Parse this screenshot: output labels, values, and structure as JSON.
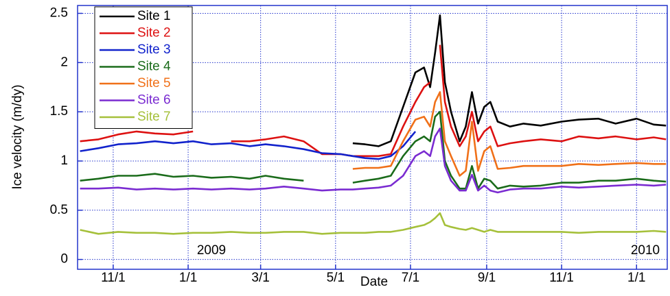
{
  "chart_data": {
    "type": "line",
    "xlabel": "Date",
    "ylabel": "Ice velocity (m/dy)",
    "annotations": [
      "2009",
      "2010"
    ],
    "x": [
      "2008-10-05",
      "2008-10-20",
      "2008-11-05",
      "2008-11-20",
      "2008-12-05",
      "2008-12-20",
      "2009-01-05",
      "2009-01-20",
      "2009-02-05",
      "2009-02-20",
      "2009-03-05",
      "2009-03-20",
      "2009-04-05",
      "2009-04-20",
      "2009-05-05",
      "2009-05-15",
      "2009-05-25",
      "2009-06-05",
      "2009-06-15",
      "2009-06-25",
      "2009-07-05",
      "2009-07-12",
      "2009-07-17",
      "2009-07-21",
      "2009-07-25",
      "2009-07-29",
      "2009-08-03",
      "2009-08-10",
      "2009-08-15",
      "2009-08-20",
      "2009-08-25",
      "2009-08-30",
      "2009-09-04",
      "2009-09-10",
      "2009-09-20",
      "2009-10-01",
      "2009-10-15",
      "2009-11-01",
      "2009-11-15",
      "2009-12-01",
      "2009-12-15",
      "2010-01-01",
      "2010-01-15",
      "2010-01-25"
    ],
    "series": [
      {
        "name": "Site 1",
        "color": "#000000",
        "values": [
          null,
          null,
          null,
          null,
          null,
          null,
          null,
          null,
          null,
          null,
          null,
          null,
          null,
          null,
          null,
          1.18,
          1.17,
          1.15,
          1.2,
          1.55,
          1.9,
          1.95,
          1.75,
          2.1,
          2.48,
          1.8,
          1.5,
          1.2,
          1.35,
          1.7,
          1.38,
          1.55,
          1.6,
          1.4,
          1.35,
          1.38,
          1.36,
          1.4,
          1.42,
          1.43,
          1.38,
          1.43,
          1.37,
          1.36
        ]
      },
      {
        "name": "Site 2",
        "color": "#dd1111",
        "values": [
          1.2,
          1.22,
          1.27,
          1.3,
          1.28,
          1.27,
          1.3,
          null,
          1.2,
          1.2,
          1.22,
          1.25,
          1.2,
          1.07,
          1.07,
          1.05,
          1.05,
          1.05,
          1.07,
          1.35,
          1.6,
          1.75,
          1.8,
          null,
          2.18,
          1.6,
          1.35,
          1.15,
          1.25,
          1.5,
          1.2,
          1.3,
          1.35,
          1.15,
          1.18,
          1.2,
          1.22,
          1.2,
          1.25,
          1.23,
          1.25,
          1.22,
          1.24,
          1.22
        ]
      },
      {
        "name": "Site 3",
        "color": "#1122cc",
        "values": [
          1.1,
          1.13,
          1.17,
          1.18,
          1.2,
          1.18,
          1.2,
          1.17,
          1.18,
          1.15,
          1.17,
          1.15,
          1.12,
          1.08,
          1.07,
          1.05,
          1.03,
          1.02,
          1.05,
          1.15,
          1.3,
          null,
          null,
          null,
          null,
          null,
          null,
          null,
          null,
          null,
          null,
          null,
          null,
          null,
          null,
          null,
          null,
          null,
          null,
          null,
          null,
          null,
          null,
          null
        ]
      },
      {
        "name": "Site 4",
        "color": "#1a6b1a",
        "values": [
          0.8,
          0.82,
          0.85,
          0.85,
          0.87,
          0.84,
          0.85,
          0.83,
          0.84,
          0.82,
          0.85,
          0.82,
          0.8,
          null,
          null,
          0.78,
          0.8,
          0.82,
          0.85,
          1.05,
          1.2,
          1.25,
          1.2,
          1.45,
          1.5,
          1.0,
          0.85,
          0.72,
          0.72,
          0.95,
          0.72,
          0.82,
          0.8,
          0.72,
          0.75,
          0.74,
          0.75,
          0.78,
          0.78,
          0.8,
          0.8,
          0.82,
          0.8,
          0.79
        ]
      },
      {
        "name": "Site 5",
        "color": "#f07018",
        "values": [
          null,
          null,
          null,
          null,
          null,
          null,
          null,
          null,
          null,
          null,
          null,
          null,
          null,
          null,
          null,
          0.92,
          0.93,
          0.93,
          0.95,
          1.2,
          1.42,
          1.45,
          1.35,
          1.6,
          1.7,
          1.2,
          1.05,
          0.85,
          0.9,
          1.4,
          0.9,
          1.1,
          1.15,
          0.92,
          0.93,
          0.95,
          0.95,
          0.95,
          0.97,
          0.96,
          0.97,
          0.98,
          0.97,
          0.97
        ]
      },
      {
        "name": "Site 6",
        "color": "#7a2bd1",
        "values": [
          0.72,
          0.72,
          0.73,
          0.71,
          0.72,
          0.71,
          0.72,
          0.71,
          0.72,
          0.71,
          0.72,
          0.74,
          0.72,
          0.7,
          0.71,
          0.71,
          0.72,
          0.73,
          0.75,
          0.85,
          1.05,
          1.1,
          1.05,
          1.25,
          1.33,
          0.95,
          0.8,
          0.7,
          0.7,
          0.86,
          0.7,
          0.75,
          0.7,
          0.68,
          0.71,
          0.72,
          0.72,
          0.74,
          0.73,
          0.74,
          0.75,
          0.76,
          0.75,
          0.76
        ]
      },
      {
        "name": "Site 7",
        "color": "#a5c03a",
        "values": [
          0.3,
          0.26,
          0.28,
          0.27,
          0.27,
          0.26,
          0.27,
          0.27,
          0.28,
          0.27,
          0.27,
          0.28,
          0.28,
          0.26,
          0.27,
          0.27,
          0.27,
          0.28,
          0.28,
          0.3,
          0.33,
          0.35,
          0.38,
          0.42,
          0.47,
          0.35,
          0.33,
          0.31,
          0.3,
          0.32,
          0.3,
          0.28,
          0.3,
          0.28,
          0.28,
          0.28,
          0.28,
          0.28,
          0.27,
          0.28,
          0.28,
          0.28,
          0.29,
          0.28
        ]
      }
    ],
    "xlim": [
      "2008-10-03",
      "2010-01-26"
    ],
    "xticks": [
      {
        "value": "2008-11-01",
        "label": "11/1"
      },
      {
        "value": "2009-01-01",
        "label": "1/1"
      },
      {
        "value": "2009-03-01",
        "label": "3/1"
      },
      {
        "value": "2009-05-01",
        "label": "5/1"
      },
      {
        "value": "2009-07-01",
        "label": "7/1"
      },
      {
        "value": "2009-09-01",
        "label": "9/1"
      },
      {
        "value": "2009-11-01",
        "label": "11/1"
      },
      {
        "value": "2010-01-01",
        "label": "1/1"
      }
    ],
    "ylim": [
      -0.1,
      2.58
    ],
    "yticks": [
      0,
      0.5,
      1,
      1.5,
      2,
      2.5
    ],
    "grid": true,
    "legend": "upper left"
  }
}
